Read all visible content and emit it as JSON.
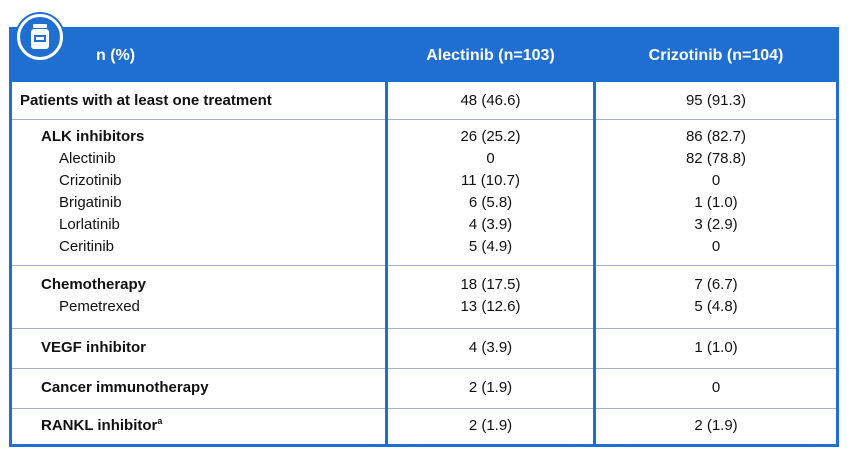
{
  "header": {
    "label": "n (%)",
    "col1": "Alectinib (n=103)",
    "col2": "Crizotinib (n=104)"
  },
  "icon": "medicine-bottle-icon",
  "colors": {
    "accent": "#1f6fd3"
  },
  "rows": [
    {
      "label": "Patients with at least one treatment",
      "alectinib": "48 (46.6)",
      "crizotinib": "95 (91.3)"
    },
    {
      "label": "ALK inhibitors",
      "alectinib": "26 (25.2)",
      "crizotinib": "86 (82.7)"
    },
    {
      "label": "Alectinib",
      "alectinib": "0",
      "crizotinib": "82 (78.8)"
    },
    {
      "label": "Crizotinib",
      "alectinib": "11 (10.7)",
      "crizotinib": "0"
    },
    {
      "label": "Brigatinib",
      "alectinib": "6 (5.8)",
      "crizotinib": "1 (1.0)"
    },
    {
      "label": "Lorlatinib",
      "alectinib": "4 (3.9)",
      "crizotinib": "3 (2.9)"
    },
    {
      "label": "Ceritinib",
      "alectinib": "5 (4.9)",
      "crizotinib": "0"
    },
    {
      "label": "Chemotherapy",
      "alectinib": "18 (17.5)",
      "crizotinib": "7 (6.7)"
    },
    {
      "label": "Pemetrexed",
      "alectinib": "13 (12.6)",
      "crizotinib": "5 (4.8)"
    },
    {
      "label": "VEGF inhibitor",
      "alectinib": "4 (3.9)",
      "crizotinib": "1 (1.0)"
    },
    {
      "label": "Cancer immunotherapy",
      "alectinib": "2 (1.9)",
      "crizotinib": "0"
    },
    {
      "label": "RANKL inhibitor",
      "footnote": "a",
      "alectinib": "2 (1.9)",
      "crizotinib": "2 (1.9)"
    }
  ]
}
